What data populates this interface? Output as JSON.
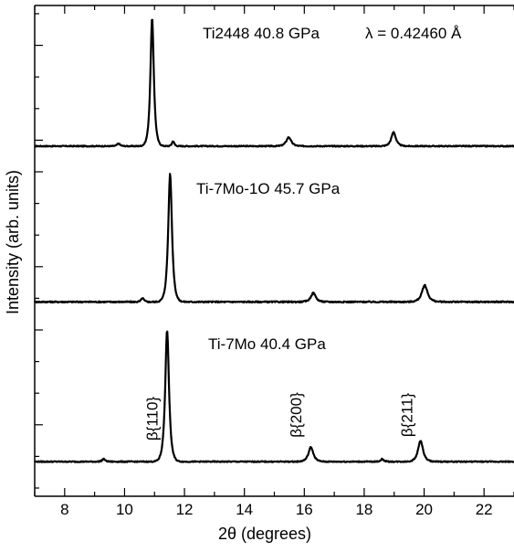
{
  "chart_data": {
    "type": "line",
    "xlabel": "2θ (degrees)",
    "ylabel": "Intensity (arb. units)",
    "xlim": [
      7,
      23
    ],
    "x_ticks": [
      8,
      10,
      12,
      14,
      16,
      18,
      20,
      22
    ],
    "wavelength_label": "λ = 0.42460 Å",
    "grid": false,
    "panels": [
      {
        "label": "Ti2448 40.8 GPa",
        "baseline": 0.05,
        "noise": 0.004,
        "peaks": [
          {
            "x": 9.8,
            "height": 0.02,
            "width": 0.08
          },
          {
            "x": 10.92,
            "height": 1.0,
            "width": 0.09
          },
          {
            "x": 11.62,
            "height": 0.04,
            "width": 0.06
          },
          {
            "x": 15.48,
            "height": 0.07,
            "width": 0.13
          },
          {
            "x": 18.98,
            "height": 0.11,
            "width": 0.12
          }
        ]
      },
      {
        "label": "Ti-7Mo-1O 45.7 GPa",
        "baseline": 0.04,
        "noise": 0.005,
        "peaks": [
          {
            "x": 10.6,
            "height": 0.03,
            "width": 0.07
          },
          {
            "x": 11.52,
            "height": 1.0,
            "width": 0.1
          },
          {
            "x": 16.3,
            "height": 0.07,
            "width": 0.13
          },
          {
            "x": 20.02,
            "height": 0.13,
            "width": 0.15
          }
        ]
      },
      {
        "label": "Ti-7Mo 40.4 GPa",
        "baseline": 0.02,
        "noise": 0.004,
        "peaks": [
          {
            "x": 9.3,
            "height": 0.02,
            "width": 0.08
          },
          {
            "x": 11.42,
            "height": 1.0,
            "width": 0.1
          },
          {
            "x": 16.22,
            "height": 0.11,
            "width": 0.13
          },
          {
            "x": 18.6,
            "height": 0.02,
            "width": 0.08
          },
          {
            "x": 19.88,
            "height": 0.16,
            "width": 0.13
          }
        ]
      }
    ],
    "peak_annotations": [
      {
        "label": "β{110}",
        "x": 11.4
      },
      {
        "label": "β{200}",
        "x": 16.2
      },
      {
        "label": "β{211}",
        "x": 19.9
      }
    ]
  }
}
